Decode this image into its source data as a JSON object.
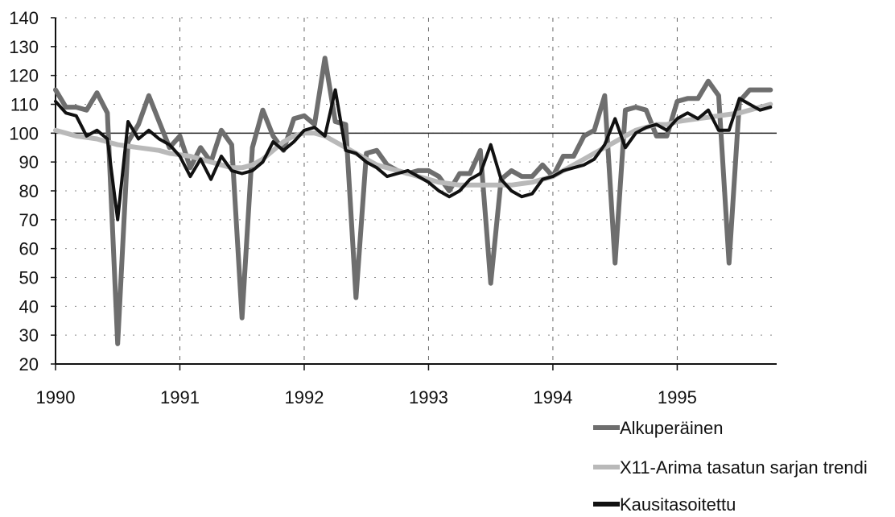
{
  "chart_data": {
    "type": "line",
    "title": "",
    "xlabel": "",
    "ylabel": "",
    "x_start_year": 1990,
    "x_end_year": 1995.83,
    "xlim": [
      1990,
      1995.8
    ],
    "ylim": [
      20,
      140
    ],
    "x_ticks": [
      "1990",
      "1991",
      "1992",
      "1993",
      "1994",
      "1995"
    ],
    "y_ticks": [
      "20",
      "30",
      "40",
      "50",
      "60",
      "70",
      "80",
      "90",
      "100",
      "110",
      "120",
      "130",
      "140"
    ],
    "reference_line": 100,
    "grid": "dotted",
    "legend_position": "bottom-right",
    "series": [
      {
        "name": "Alkuperäinen",
        "color": "#6e6e6e",
        "values": [
          115,
          109,
          109,
          108,
          114,
          107,
          27,
          97,
          103,
          113,
          104,
          95,
          99,
          88,
          95,
          90,
          101,
          96,
          36,
          95,
          108,
          99,
          94,
          105,
          106,
          103,
          126,
          104,
          103,
          43,
          93,
          94,
          89,
          87,
          86,
          87,
          87,
          85,
          80,
          86,
          86,
          94,
          48,
          84,
          87,
          85,
          85,
          89,
          85,
          92,
          92,
          99,
          101,
          113,
          55,
          108,
          109,
          108,
          99,
          99,
          111,
          112,
          112,
          118,
          113,
          55,
          111,
          115,
          115,
          115
        ]
      },
      {
        "name": "X11-Arima tasatun sarjan trendi",
        "color": "#b9b9b9",
        "values": [
          101,
          100,
          99,
          98.5,
          98,
          97,
          96,
          95.5,
          95,
          94.5,
          94,
          93,
          92.5,
          92,
          91,
          90,
          89,
          88,
          88,
          89,
          91,
          94,
          97,
          99,
          100,
          100,
          99,
          97,
          95,
          93,
          91,
          89,
          88,
          87,
          86,
          85,
          84,
          83,
          82.5,
          82,
          82,
          82,
          82,
          82,
          82,
          82.5,
          83,
          84,
          85,
          87,
          89,
          91,
          93,
          95,
          97,
          99,
          101,
          102,
          103,
          103,
          104,
          104.5,
          105,
          105.5,
          106,
          106.5,
          107,
          108,
          109,
          110
        ]
      },
      {
        "name": "Kausitasoitettu",
        "color": "#111111",
        "values": [
          111,
          107,
          106,
          99,
          101,
          98,
          70,
          104,
          98,
          101,
          98,
          96,
          92,
          85,
          91,
          84,
          92,
          87,
          86,
          87,
          90,
          97,
          94,
          97,
          101,
          102,
          99,
          115,
          94,
          93,
          90,
          88,
          85,
          86,
          87,
          85,
          83,
          80,
          78,
          80,
          84,
          86,
          96,
          84,
          80,
          78,
          79,
          84,
          85,
          87,
          88,
          89,
          91,
          96,
          105,
          95,
          100,
          102,
          103,
          101,
          105,
          107,
          105,
          108,
          101,
          101,
          112,
          110,
          108,
          109
        ]
      }
    ]
  }
}
